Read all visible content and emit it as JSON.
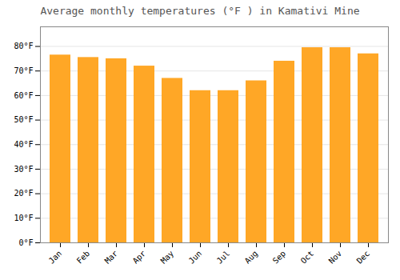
{
  "chart_data": {
    "type": "bar",
    "title": "Average monthly temperatures (°F ) in Kamativi Mine",
    "categories": [
      "Jan",
      "Feb",
      "Mar",
      "Apr",
      "May",
      "Jun",
      "Jul",
      "Aug",
      "Sep",
      "Oct",
      "Nov",
      "Dec"
    ],
    "values": [
      76.5,
      75.5,
      75.0,
      72.0,
      67.0,
      62.0,
      62.0,
      66.0,
      74.0,
      79.5,
      79.5,
      77.0
    ],
    "color": "#FFA726",
    "ylim": [
      0,
      88
    ],
    "yticks": [
      {
        "value": 0,
        "label": "0°F"
      },
      {
        "value": 10,
        "label": "10°F"
      },
      {
        "value": 20,
        "label": "20°F"
      },
      {
        "value": 30,
        "label": "30°F"
      },
      {
        "value": 40,
        "label": "40°F"
      },
      {
        "value": 50,
        "label": "50°F"
      },
      {
        "value": 60,
        "label": "60°F"
      },
      {
        "value": 70,
        "label": "70°F"
      },
      {
        "value": 80,
        "label": "80°F"
      }
    ],
    "grid": true
  }
}
